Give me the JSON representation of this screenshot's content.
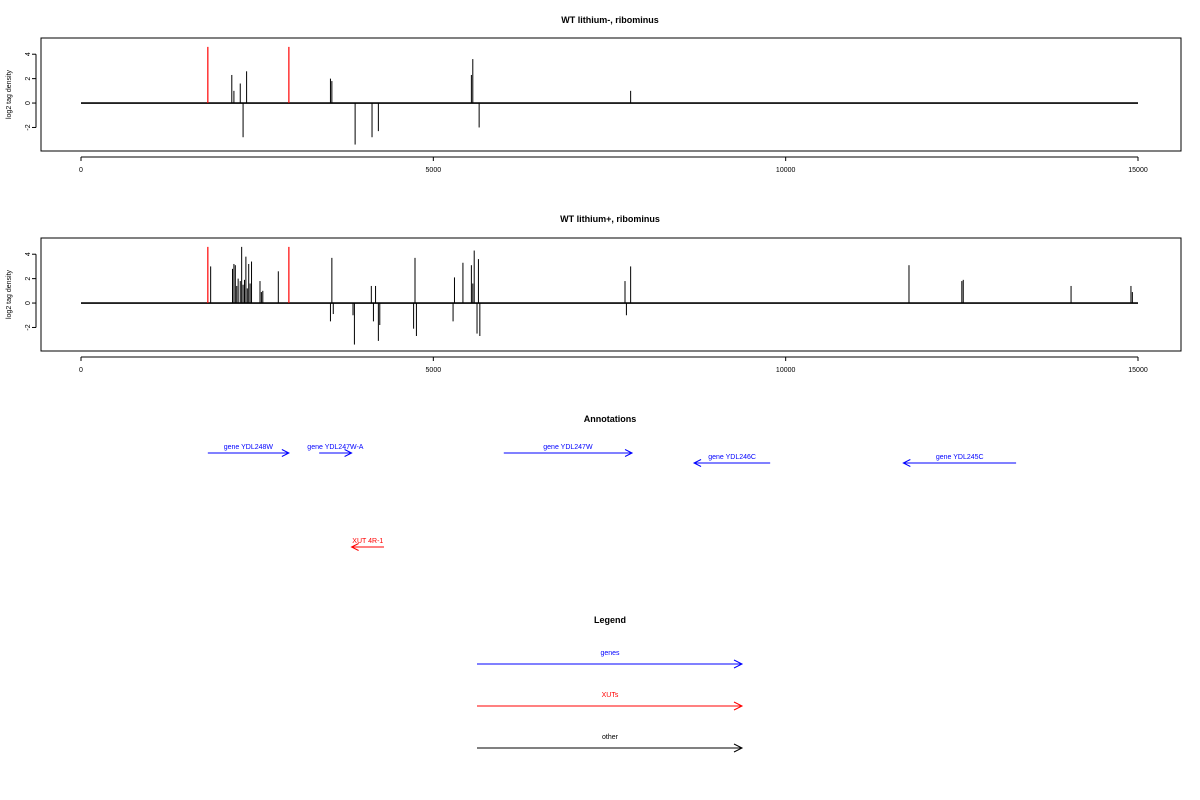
{
  "chart_data": [
    {
      "type": "bar",
      "title": "WT lithium-, ribominus",
      "xlabel": "",
      "ylabel": "log2 tag density",
      "xlim": [
        -1000,
        16000
      ],
      "ylim": [
        -3.6,
        5.0
      ],
      "xticks": [
        0,
        5000,
        10000,
        15000
      ],
      "yticks": [
        -2,
        0,
        2,
        4
      ],
      "baseline": {
        "x": [
          0,
          15000
        ],
        "y": 0
      },
      "series": [
        {
          "color": "#ff0000",
          "x": [
            1800,
            2950
          ],
          "values": [
            4.6,
            4.6
          ]
        },
        {
          "color": "#000000",
          "x": [
            2140,
            2170,
            2260,
            2300,
            2350,
            3540,
            3560,
            3890,
            4130,
            4220,
            5540,
            5560,
            5650,
            7800
          ],
          "values": [
            2.3,
            1.0,
            1.6,
            -2.8,
            2.6,
            2.0,
            1.8,
            -3.4,
            -2.8,
            -2.3,
            2.3,
            3.6,
            -2.0,
            1.0
          ]
        }
      ]
    },
    {
      "type": "bar",
      "title": "WT lithium+, ribominus",
      "xlabel": "",
      "ylabel": "log2 tag density",
      "xlim": [
        -1000,
        16000
      ],
      "ylim": [
        -3.6,
        5.0
      ],
      "xticks": [
        0,
        5000,
        10000,
        15000
      ],
      "yticks": [
        -2,
        0,
        2,
        4
      ],
      "baseline": {
        "x": [
          0,
          15000
        ],
        "y": 0
      },
      "series": [
        {
          "color": "#ff0000",
          "x": [
            1800,
            2950
          ],
          "values": [
            4.6,
            4.6
          ]
        },
        {
          "color": "#000000",
          "x": [
            1840,
            2150,
            2170,
            2190,
            2210,
            2230,
            2260,
            2280,
            2300,
            2320,
            2340,
            2360,
            2380,
            2400,
            2420,
            2540,
            2560,
            2580,
            2800,
            3540,
            3560,
            3580,
            3860,
            3880,
            4120,
            4150,
            4180,
            4220,
            4240,
            4720,
            4740,
            4760,
            5280,
            5300,
            5420,
            5540,
            5560,
            5580,
            5620,
            5640,
            5660,
            7720,
            7740,
            7800,
            11750,
            12500,
            12520,
            14050,
            14900,
            14920
          ],
          "values": [
            3.0,
            2.8,
            3.2,
            3.1,
            1.4,
            2.0,
            1.8,
            4.6,
            1.5,
            1.9,
            3.8,
            1.2,
            3.2,
            1.6,
            3.4,
            1.8,
            0.9,
            1.0,
            2.6,
            -1.5,
            3.7,
            -0.9,
            -1.0,
            -3.4,
            1.4,
            -1.5,
            1.4,
            -3.1,
            -1.8,
            -2.1,
            3.7,
            -2.7,
            -1.5,
            2.1,
            3.3,
            3.1,
            1.6,
            4.3,
            -2.5,
            3.6,
            -2.7,
            1.8,
            -1.0,
            3.0,
            3.1,
            1.8,
            1.9,
            1.4,
            1.4,
            0.9
          ]
        }
      ]
    }
  ],
  "annotations": {
    "title": "Annotations",
    "items": [
      {
        "label": "gene YDL248W",
        "color": "#0000ff",
        "x0": 1800,
        "x1": 2950,
        "direction": "right",
        "row": 1
      },
      {
        "label": "gene YDL247W-A",
        "color": "#0000ff",
        "x0": 3380,
        "x1": 3840,
        "direction": "right",
        "row": 1
      },
      {
        "label": "gene YDL247W",
        "color": "#0000ff",
        "x0": 6000,
        "x1": 7820,
        "direction": "right",
        "row": 1
      },
      {
        "label": "gene YDL246C",
        "color": "#0000ff",
        "x0": 8700,
        "x1": 9780,
        "direction": "left",
        "row": 2
      },
      {
        "label": "gene YDL245C",
        "color": "#0000ff",
        "x0": 11670,
        "x1": 13270,
        "direction": "left",
        "row": 2
      },
      {
        "label": "XUT 4R-1",
        "color": "#ff0000",
        "x0": 3840,
        "x1": 4300,
        "direction": "left",
        "row": 3
      }
    ]
  },
  "legend": {
    "title": "Legend",
    "items": [
      {
        "label": "genes",
        "color": "#0000ff"
      },
      {
        "label": "XUTs",
        "color": "#ff0000"
      },
      {
        "label": "other",
        "color": "#000000"
      }
    ]
  }
}
